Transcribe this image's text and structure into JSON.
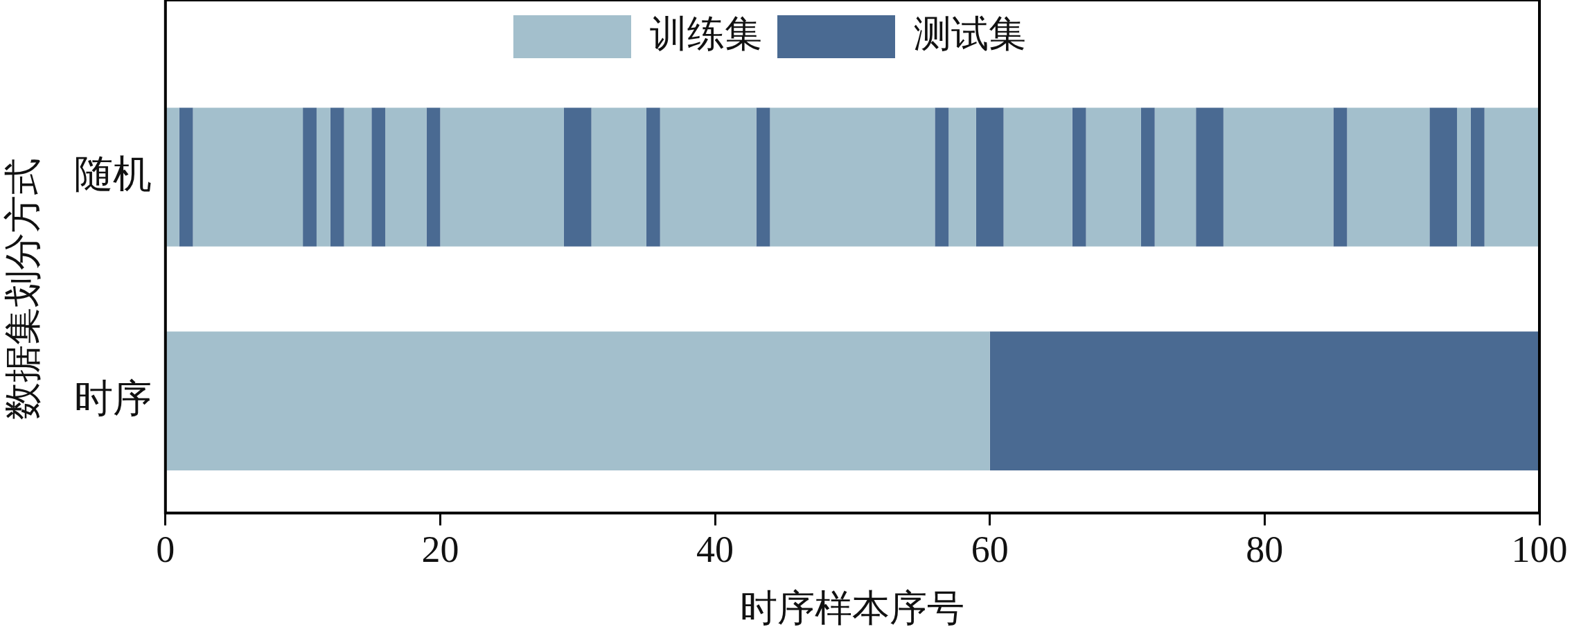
{
  "chart_data": {
    "type": "bar",
    "orientation": "horizontal",
    "stacked": true,
    "xlabel": "时序样本序号",
    "ylabel": "数据集划分方式",
    "categories": [
      "随机",
      "时序"
    ],
    "xlim": [
      0,
      100
    ],
    "xticks": [
      0,
      20,
      40,
      60,
      80,
      100
    ],
    "grid": false,
    "legend": "top",
    "series": [
      {
        "name": "训练集",
        "color": "#a3bfcc",
        "values": [
          1,
          60
        ]
      },
      {
        "name": "测试集",
        "color": "#4a6a92",
        "values": [
          1,
          40
        ]
      },
      {
        "color": "#a3bfcc",
        "values": [
          8,
          null
        ]
      },
      {
        "color": "#4a6a92",
        "values": [
          1,
          null
        ]
      },
      {
        "color": "#a3bfcc",
        "values": [
          1,
          null
        ]
      },
      {
        "color": "#4a6a92",
        "values": [
          1,
          null
        ]
      },
      {
        "color": "#a3bfcc",
        "values": [
          2,
          null
        ]
      },
      {
        "color": "#4a6a92",
        "values": [
          1,
          null
        ]
      },
      {
        "color": "#a3bfcc",
        "values": [
          3,
          null
        ]
      },
      {
        "color": "#4a6a92",
        "values": [
          1,
          null
        ]
      },
      {
        "color": "#a3bfcc",
        "values": [
          9,
          null
        ]
      },
      {
        "color": "#4a6a92",
        "values": [
          2,
          null
        ]
      },
      {
        "color": "#a3bfcc",
        "values": [
          4,
          null
        ]
      },
      {
        "color": "#4a6a92",
        "values": [
          1,
          null
        ]
      },
      {
        "color": "#a3bfcc",
        "values": [
          7,
          null
        ]
      },
      {
        "color": "#4a6a92",
        "values": [
          1,
          null
        ]
      },
      {
        "color": "#a3bfcc",
        "values": [
          12,
          null
        ]
      },
      {
        "color": "#4a6a92",
        "values": [
          1,
          null
        ]
      },
      {
        "color": "#a3bfcc",
        "values": [
          2,
          null
        ]
      },
      {
        "color": "#4a6a92",
        "values": [
          2,
          null
        ]
      },
      {
        "color": "#a3bfcc",
        "values": [
          5,
          null
        ]
      },
      {
        "color": "#4a6a92",
        "values": [
          1,
          null
        ]
      },
      {
        "color": "#a3bfcc",
        "values": [
          4,
          null
        ]
      },
      {
        "color": "#4a6a92",
        "values": [
          1,
          null
        ]
      },
      {
        "color": "#a3bfcc",
        "values": [
          3,
          null
        ]
      },
      {
        "color": "#4a6a92",
        "values": [
          2,
          null
        ]
      },
      {
        "color": "#a3bfcc",
        "values": [
          8,
          null
        ]
      },
      {
        "color": "#4a6a92",
        "values": [
          1,
          null
        ]
      },
      {
        "color": "#a3bfcc",
        "values": [
          6,
          null
        ]
      },
      {
        "color": "#4a6a92",
        "values": [
          2,
          null
        ]
      },
      {
        "color": "#a3bfcc",
        "values": [
          1,
          null
        ]
      },
      {
        "color": "#4a6a92",
        "values": [
          1,
          null
        ]
      },
      {
        "color": "#a3bfcc",
        "values": [
          4,
          null
        ]
      }
    ]
  }
}
